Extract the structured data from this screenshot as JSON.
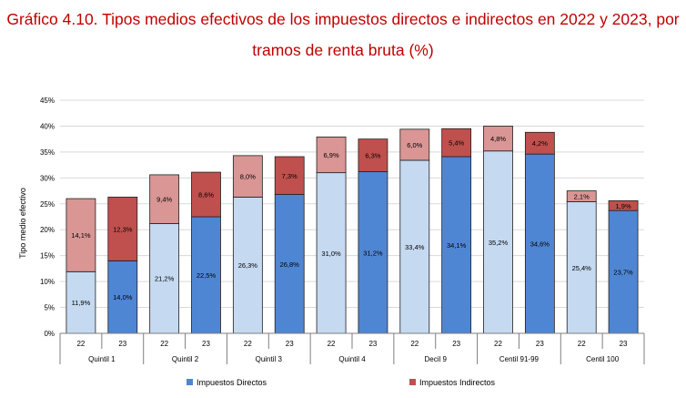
{
  "title_line1": "Gráfico 4.10. Tipos medios efectivos de los impuestos directos e indirectos en 2022 y 2023, por",
  "title_line2": "tramos de renta bruta (%)",
  "chart_data": {
    "type": "bar",
    "stacked": true,
    "ylabel": "Tipo medio efectivo",
    "ylim": [
      0,
      45
    ],
    "yticks": [
      "0%",
      "5%",
      "10%",
      "15%",
      "20%",
      "25%",
      "30%",
      "35%",
      "40%",
      "45%"
    ],
    "grid": true,
    "legend_position": "bottom",
    "groups": [
      "Quintil 1",
      "Quintil 2",
      "Quintil 3",
      "Quintil 4",
      "Decil 9",
      "Centil 91-99",
      "Centil 100"
    ],
    "categories": [
      "22",
      "23",
      "22",
      "23",
      "22",
      "23",
      "22",
      "23",
      "22",
      "23",
      "22",
      "23",
      "22",
      "23"
    ],
    "series": [
      {
        "name": "Impuestos Directos",
        "color": "#4f86d4",
        "color_2022": "#c5d9f1",
        "values": [
          11.9,
          14.0,
          21.2,
          22.5,
          26.3,
          26.8,
          31.0,
          31.2,
          33.4,
          34.1,
          35.2,
          34.6,
          25.4,
          23.7
        ],
        "labels": [
          "11,9%",
          "14,0%",
          "21,2%",
          "22,5%",
          "26,3%",
          "26,8%",
          "31,0%",
          "31,2%",
          "33,4%",
          "34,1%",
          "35,2%",
          "34,6%",
          "25,4%",
          "23,7%"
        ]
      },
      {
        "name": "Impuestos Indirectos",
        "color": "#c0504d",
        "color_2022": "#d99694",
        "values": [
          14.1,
          12.3,
          9.4,
          8.6,
          8.0,
          7.3,
          6.9,
          6.3,
          6.0,
          5.4,
          4.8,
          4.2,
          2.1,
          1.9
        ],
        "labels": [
          "14,1%",
          "12,3%",
          "9,4%",
          "8,6%",
          "8,0%",
          "7,3%",
          "6,9%",
          "6,3%",
          "6,0%",
          "5,4%",
          "4,8%",
          "4,2%",
          "2,1%",
          "1,9%"
        ]
      }
    ]
  }
}
